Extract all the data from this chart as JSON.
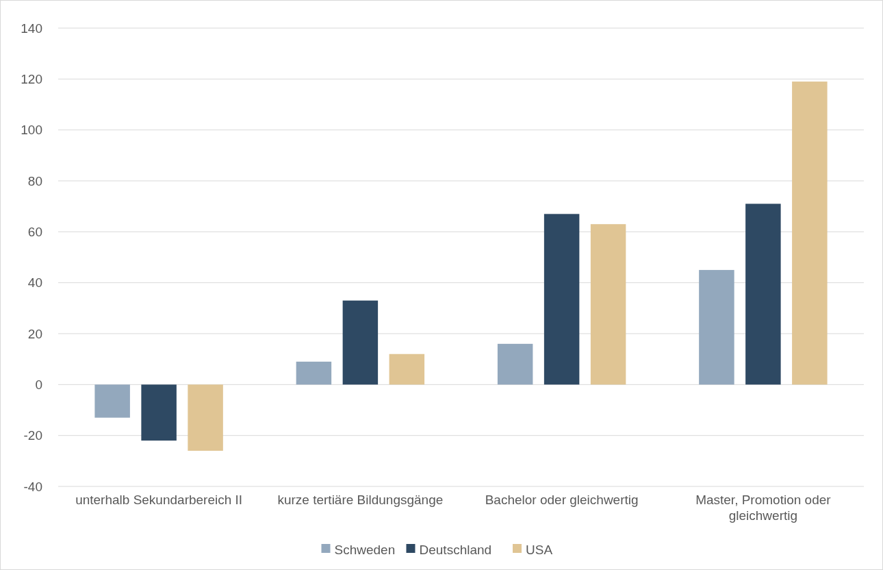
{
  "chart_data": {
    "type": "bar",
    "categories": [
      "unterhalb Sekundarbereich II",
      "kurze tertiäre Bildungsgänge",
      "Bachelor oder gleichwertig",
      "Master, Promotion oder gleichwertig"
    ],
    "series": [
      {
        "name": "Schweden",
        "color": "#93a8bd",
        "values": [
          -13,
          9,
          16,
          45
        ]
      },
      {
        "name": "Deutschland",
        "color": "#2e4963",
        "values": [
          -22,
          33,
          67,
          71
        ]
      },
      {
        "name": "USA",
        "color": "#e0c594",
        "values": [
          -26,
          12,
          63,
          119
        ]
      }
    ],
    "ylim": [
      -40,
      140
    ],
    "yticks": [
      -40,
      -20,
      0,
      20,
      40,
      60,
      80,
      100,
      120,
      140
    ],
    "grid": "y",
    "legend": "bottom"
  }
}
